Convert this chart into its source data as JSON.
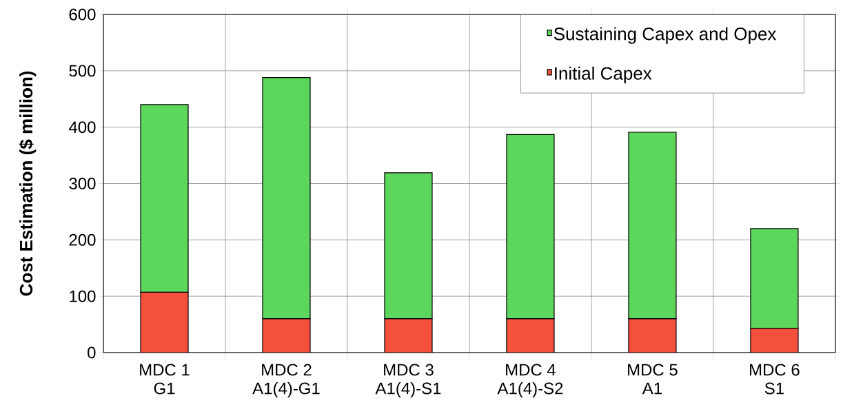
{
  "chart_data": {
    "type": "bar",
    "stacked": true,
    "ylabel": "Cost Estimation ($ million)",
    "categories": [
      "MDC 1 G1",
      "MDC 2 A1(4)-G1",
      "MDC 3 A1(4)-S1",
      "MDC 4 A1(4)-S2",
      "MDC 5 A1",
      "MDC 6 S1"
    ],
    "series": [
      {
        "name": "Initial Capex",
        "color": "#f5503c",
        "values": [
          107,
          60,
          60,
          60,
          60,
          43
        ]
      },
      {
        "name": "Sustaining Capex and Opex",
        "color": "#5cd65c",
        "values": [
          333,
          428,
          259,
          327,
          331,
          177
        ]
      }
    ],
    "ylim": [
      0,
      600
    ],
    "yticks": [
      0,
      100,
      200,
      300,
      400,
      500,
      600
    ],
    "grid": true,
    "legend": "top right"
  }
}
